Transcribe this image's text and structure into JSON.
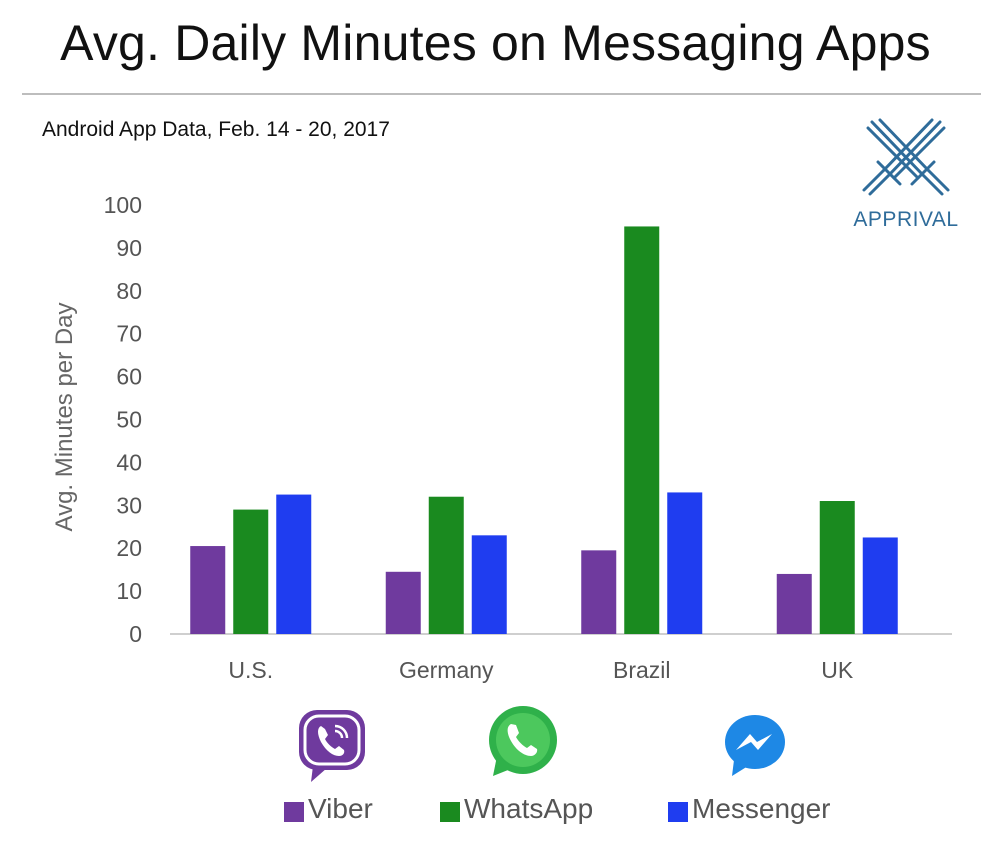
{
  "title": "Avg. Daily Minutes on Messaging Apps",
  "subtitle": "Android App Data, Feb. 14 - 20, 2017",
  "brand": {
    "name": "APPRIVAL",
    "color": "#2f6c9a",
    "icon": "crossed-swords-icon"
  },
  "colors": {
    "viber": "#6f3a9e",
    "whatsapp": "#1a8a1f",
    "messenger": "#1f3df0"
  },
  "legend": [
    {
      "name": "Viber",
      "icon": "viber-logo-icon"
    },
    {
      "name": "WhatsApp",
      "icon": "whatsapp-logo-icon"
    },
    {
      "name": "Messenger",
      "icon": "messenger-logo-icon"
    }
  ],
  "chart_data": {
    "type": "bar",
    "title": "Avg. Daily Minutes on Messaging Apps",
    "subtitle": "Android App Data, Feb. 14 - 20, 2017",
    "xlabel": "",
    "ylabel": "Avg. Minutes per Day",
    "ylim": [
      0,
      100
    ],
    "yticks": [
      0,
      10,
      20,
      30,
      40,
      50,
      60,
      70,
      80,
      90,
      100
    ],
    "grid": false,
    "legend_position": "bottom",
    "categories": [
      "U.S.",
      "Germany",
      "Brazil",
      "UK"
    ],
    "series": [
      {
        "name": "Viber",
        "color": "#6f3a9e",
        "values": [
          20.5,
          14.5,
          19.5,
          14
        ]
      },
      {
        "name": "WhatsApp",
        "color": "#1a8a1f",
        "values": [
          29,
          32,
          95,
          31
        ]
      },
      {
        "name": "Messenger",
        "color": "#1f3df0",
        "values": [
          32.5,
          23,
          33,
          22.5
        ]
      }
    ]
  }
}
